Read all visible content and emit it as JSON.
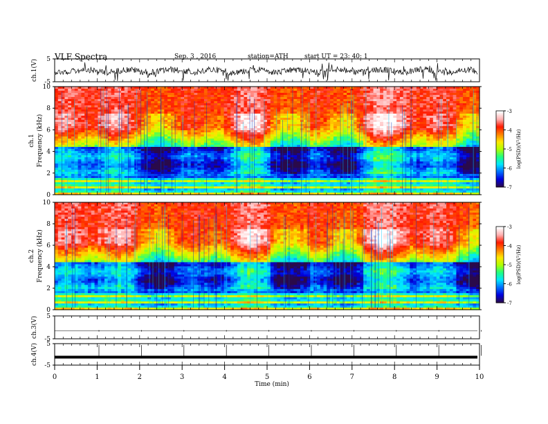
{
  "header": {
    "title": "VLF  Spectra",
    "date": "Sep. 3  , 2016",
    "station": "station=ATH",
    "start": "start  UT  =   23: 40: 1"
  },
  "colors": {
    "scale": [
      "#2a0a4a",
      "#0000e0",
      "#0070ff",
      "#00e8ff",
      "#20ff80",
      "#b0ff00",
      "#ffe800",
      "#ff8000",
      "#ff1a00",
      "#ffb0b0",
      "#ffffff"
    ]
  },
  "chart_data": [
    {
      "type": "line",
      "panel": "ch1-waveform",
      "ylabel": "ch.1(V)",
      "ylim": [
        -5,
        5
      ],
      "yticks": [
        "5",
        "-5"
      ],
      "xlim": [
        0,
        10
      ]
    },
    {
      "type": "heatmap",
      "panel": "ch1-spectrogram",
      "ylabel": "ch.1\nFrequency  (kHz)",
      "ylim": [
        0,
        10
      ],
      "yticks": [
        "0",
        "2",
        "4",
        "6",
        "8",
        "10"
      ],
      "xlim": [
        0,
        10
      ],
      "colorbar": {
        "label": "log(PSD)(V²/Hz)",
        "range": [
          -7,
          -3
        ],
        "ticks": [
          "-3",
          "-4",
          "-5",
          "-6",
          "-7"
        ]
      }
    },
    {
      "type": "heatmap",
      "panel": "ch2-spectrogram",
      "ylabel": "ch.2\nFrequency  (kHz)",
      "ylim": [
        0,
        10
      ],
      "yticks": [
        "0",
        "2",
        "4",
        "6",
        "8",
        "10"
      ],
      "xlim": [
        0,
        10
      ],
      "colorbar": {
        "label": "log(PSD)(V²/Hz)",
        "range": [
          -7,
          -3
        ],
        "ticks": [
          "-3",
          "-4",
          "-5",
          "-6",
          "-7"
        ]
      }
    },
    {
      "type": "line",
      "panel": "ch3-waveform",
      "ylabel": "ch.3(V)",
      "ylim": [
        -5,
        5
      ],
      "yticks": [
        "5",
        "-5"
      ],
      "xlim": [
        0,
        10
      ]
    },
    {
      "type": "line",
      "panel": "ch4-waveform",
      "ylabel": "ch.4(V)",
      "ylim": [
        -5,
        5
      ],
      "yticks": [
        "5",
        "-5"
      ],
      "xlim": [
        0,
        10
      ]
    }
  ],
  "xaxis": {
    "label": "Time  (min)",
    "ticks": [
      "0",
      "1",
      "2",
      "3",
      "4",
      "5",
      "6",
      "7",
      "8",
      "9",
      "10"
    ]
  }
}
